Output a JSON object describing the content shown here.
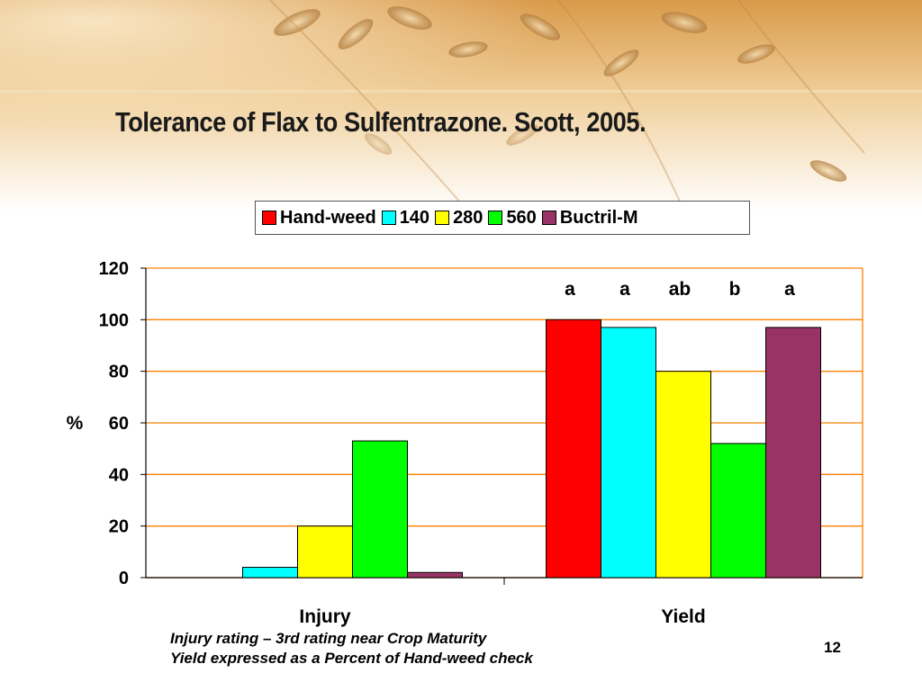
{
  "slide": {
    "title": "Tolerance of Flax to Sulfentrazone.  Scott, 2005.",
    "page_number": "12",
    "notes": [
      "Injury rating – 3rd rating near Crop Maturity",
      "Yield expressed as a Percent of Hand-weed check"
    ]
  },
  "colors": {
    "hand_weed": "#ff0000",
    "t140": "#00ffff",
    "t280": "#ffff00",
    "t560": "#00ff00",
    "bucktril": "#993366",
    "grid": "#ff8000"
  },
  "chart_data": {
    "type": "bar",
    "categories": [
      "Injury",
      "Yield"
    ],
    "series": [
      {
        "name": "Hand-weed",
        "values": [
          0,
          100
        ]
      },
      {
        "name": "140",
        "values": [
          4,
          97
        ]
      },
      {
        "name": "280",
        "values": [
          20,
          80
        ]
      },
      {
        "name": "560",
        "values": [
          53,
          52
        ]
      },
      {
        "name": "Buctril-M",
        "values": [
          2,
          97
        ]
      }
    ],
    "ylabel": "%",
    "ylim": [
      0,
      120
    ],
    "yticks": [
      "0",
      "20",
      "40",
      "60",
      "80",
      "100",
      "120"
    ],
    "grid": true,
    "legend_position": "top",
    "annotations": {
      "category": "Yield",
      "labels": [
        "a",
        "a",
        "ab",
        "b",
        "a"
      ]
    }
  }
}
